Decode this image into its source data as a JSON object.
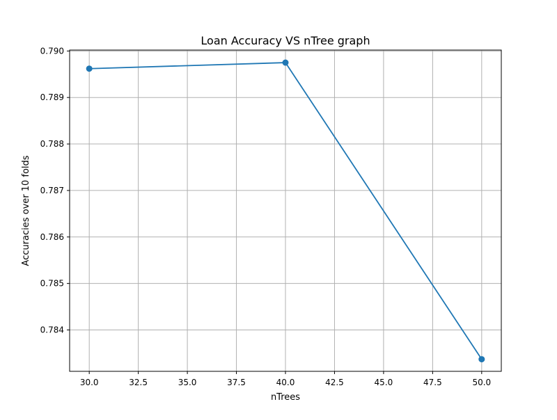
{
  "chart_data": {
    "type": "line",
    "title": "Loan Accuracy VS nTree graph",
    "xlabel": "nTrees",
    "ylabel": "Accuracies over 10 folds",
    "x": [
      30,
      40,
      50
    ],
    "series": [
      {
        "values": [
          0.78962,
          0.78975,
          0.78337
        ],
        "color": "#1f77b4",
        "marker": "circle"
      }
    ],
    "xlim": [
      29,
      51
    ],
    "ylim": [
      0.78311,
      0.79002
    ],
    "xticks": [
      30.0,
      32.5,
      35.0,
      37.5,
      40.0,
      42.5,
      45.0,
      47.5,
      50.0
    ],
    "xtick_labels": [
      "30.0",
      "32.5",
      "35.0",
      "37.5",
      "40.0",
      "42.5",
      "45.0",
      "47.5",
      "50.0"
    ],
    "yticks": [
      0.784,
      0.785,
      0.786,
      0.787,
      0.788,
      0.789,
      0.79
    ],
    "ytick_labels": [
      "0.784",
      "0.785",
      "0.786",
      "0.787",
      "0.788",
      "0.789",
      "0.790"
    ],
    "grid": true,
    "grid_color": "#b0b0b0",
    "axis_color": "#000000"
  }
}
